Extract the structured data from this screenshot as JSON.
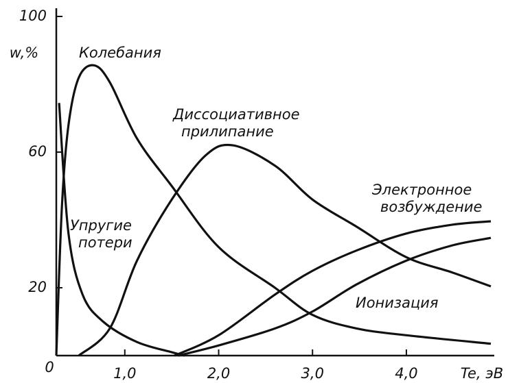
{
  "chart_data": {
    "type": "line",
    "ylabel": "w,%",
    "xlabel": "Te, эВ",
    "xlim": [
      0.27,
      4.9
    ],
    "ylim": [
      0,
      100
    ],
    "xticks": [
      {
        "value": 1,
        "label": "1,0"
      },
      {
        "value": 2,
        "label": "2,0"
      },
      {
        "value": 3,
        "label": "3,0"
      },
      {
        "value": 4,
        "label": "4,0"
      }
    ],
    "yticks": [
      0,
      20,
      60,
      100
    ],
    "color": "#111111",
    "series": [
      {
        "label_lines": [
          "Колебания"
        ],
        "x": [
          0.27,
          0.33,
          0.4,
          0.51,
          0.67,
          0.84,
          1.13,
          1.5,
          2.0,
          2.6,
          3.0,
          3.47,
          4.0,
          4.9
        ],
        "values": [
          0,
          44,
          68,
          82,
          85.6,
          80.6,
          64,
          50,
          32,
          20,
          12,
          8,
          6,
          3.5
        ]
      },
      {
        "label_lines": [
          "Упругие",
          "потери"
        ],
        "x": [
          0.3,
          0.4,
          0.55,
          0.77,
          1.13,
          1.5,
          1.64
        ],
        "values": [
          74.5,
          36,
          18,
          10,
          4,
          1,
          0
        ]
      },
      {
        "label_lines": [
          "Диссоциативное",
          "прилипание"
        ],
        "x": [
          0.51,
          0.84,
          1.13,
          1.5,
          1.86,
          2.15,
          2.6,
          3.0,
          3.47,
          4.0,
          4.49,
          4.9
        ],
        "values": [
          0,
          8,
          28,
          46,
          59,
          62,
          56,
          46,
          38,
          29,
          24.5,
          20.4
        ]
      },
      {
        "label_lines": [
          "Электронное",
          "возбуждение"
        ],
        "x": [
          1.53,
          2.0,
          2.6,
          3.0,
          3.47,
          4.0,
          4.49,
          4.9
        ],
        "values": [
          0,
          6,
          18,
          25,
          31,
          36,
          38.6,
          39.6
        ]
      },
      {
        "label_lines": [
          "Ионизация"
        ],
        "x": [
          1.57,
          2.0,
          2.6,
          3.0,
          3.47,
          4.0,
          4.49,
          4.9
        ],
        "values": [
          0,
          3,
          8,
          13,
          21,
          28,
          32.5,
          34.7
        ]
      }
    ]
  }
}
